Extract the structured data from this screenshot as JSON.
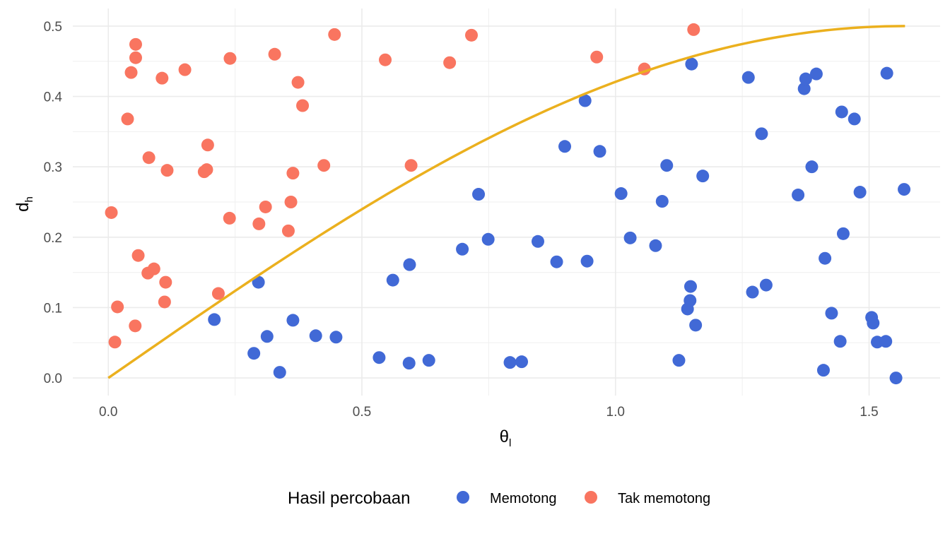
{
  "chart_data": {
    "type": "scatter",
    "title": "",
    "xlabel": "θ",
    "xlabel_sub": "l",
    "ylabel": "d",
    "ylabel_sub": "h",
    "xlim": [
      -0.07,
      1.64
    ],
    "ylim": [
      -0.025,
      0.525
    ],
    "x_ticks": [
      0.0,
      0.5,
      1.0,
      1.5
    ],
    "x_tick_labels": [
      "0.0",
      "0.5",
      "1.0",
      "1.5"
    ],
    "y_ticks": [
      0.0,
      0.1,
      0.2,
      0.3,
      0.4,
      0.5
    ],
    "y_tick_labels": [
      "0.0",
      "0.1",
      "0.2",
      "0.3",
      "0.4",
      "0.5"
    ],
    "grid": true,
    "legend": {
      "title": "Hasil percobaan",
      "position": "bottom",
      "entries": [
        {
          "label": "Memotong",
          "color": "#4169D6"
        },
        {
          "label": "Tak memotong",
          "color": "#F97560"
        }
      ]
    },
    "curve": {
      "name": "d = sin(θ)/2",
      "color": "#EBB01E",
      "x_range": [
        0,
        1.5708
      ]
    },
    "series": [
      {
        "name": "Memotong",
        "color": "#4169D6",
        "points": [
          [
            0.209,
            0.083
          ],
          [
            0.287,
            0.035
          ],
          [
            0.296,
            0.136
          ],
          [
            0.313,
            0.059
          ],
          [
            0.338,
            0.008
          ],
          [
            0.364,
            0.082
          ],
          [
            0.409,
            0.06
          ],
          [
            0.449,
            0.058
          ],
          [
            0.534,
            0.029
          ],
          [
            0.561,
            0.139
          ],
          [
            0.593,
            0.021
          ],
          [
            0.594,
            0.161
          ],
          [
            0.632,
            0.025
          ],
          [
            0.698,
            0.183
          ],
          [
            0.73,
            0.261
          ],
          [
            0.749,
            0.197
          ],
          [
            0.792,
            0.022
          ],
          [
            0.815,
            0.023
          ],
          [
            0.847,
            0.194
          ],
          [
            0.884,
            0.165
          ],
          [
            0.9,
            0.329
          ],
          [
            0.94,
            0.394
          ],
          [
            0.944,
            0.166
          ],
          [
            0.969,
            0.322
          ],
          [
            1.011,
            0.262
          ],
          [
            1.029,
            0.199
          ],
          [
            1.079,
            0.188
          ],
          [
            1.092,
            0.251
          ],
          [
            1.101,
            0.302
          ],
          [
            1.125,
            0.025
          ],
          [
            1.142,
            0.098
          ],
          [
            1.147,
            0.11
          ],
          [
            1.148,
            0.13
          ],
          [
            1.15,
            0.446
          ],
          [
            1.158,
            0.075
          ],
          [
            1.172,
            0.287
          ],
          [
            1.262,
            0.427
          ],
          [
            1.27,
            0.122
          ],
          [
            1.288,
            0.347
          ],
          [
            1.297,
            0.132
          ],
          [
            1.36,
            0.26
          ],
          [
            1.372,
            0.411
          ],
          [
            1.375,
            0.425
          ],
          [
            1.387,
            0.3
          ],
          [
            1.396,
            0.432
          ],
          [
            1.41,
            0.011
          ],
          [
            1.413,
            0.17
          ],
          [
            1.426,
            0.092
          ],
          [
            1.443,
            0.052
          ],
          [
            1.446,
            0.378
          ],
          [
            1.449,
            0.205
          ],
          [
            1.471,
            0.368
          ],
          [
            1.482,
            0.264
          ],
          [
            1.505,
            0.086
          ],
          [
            1.508,
            0.078
          ],
          [
            1.516,
            0.051
          ],
          [
            1.533,
            0.052
          ],
          [
            1.535,
            0.433
          ],
          [
            1.553,
            0.0
          ],
          [
            1.569,
            0.268
          ]
        ]
      },
      {
        "name": "Tak memotong",
        "color": "#F97560",
        "points": [
          [
            0.006,
            0.235
          ],
          [
            0.013,
            0.051
          ],
          [
            0.018,
            0.101
          ],
          [
            0.038,
            0.368
          ],
          [
            0.045,
            0.434
          ],
          [
            0.053,
            0.074
          ],
          [
            0.054,
            0.455
          ],
          [
            0.054,
            0.474
          ],
          [
            0.059,
            0.174
          ],
          [
            0.078,
            0.149
          ],
          [
            0.08,
            0.313
          ],
          [
            0.09,
            0.155
          ],
          [
            0.106,
            0.426
          ],
          [
            0.111,
            0.108
          ],
          [
            0.113,
            0.136
          ],
          [
            0.116,
            0.295
          ],
          [
            0.151,
            0.438
          ],
          [
            0.189,
            0.293
          ],
          [
            0.194,
            0.296
          ],
          [
            0.196,
            0.331
          ],
          [
            0.217,
            0.12
          ],
          [
            0.239,
            0.227
          ],
          [
            0.24,
            0.454
          ],
          [
            0.297,
            0.219
          ],
          [
            0.31,
            0.243
          ],
          [
            0.328,
            0.46
          ],
          [
            0.355,
            0.209
          ],
          [
            0.36,
            0.25
          ],
          [
            0.364,
            0.291
          ],
          [
            0.374,
            0.42
          ],
          [
            0.383,
            0.387
          ],
          [
            0.425,
            0.302
          ],
          [
            0.446,
            0.488
          ],
          [
            0.546,
            0.452
          ],
          [
            0.597,
            0.302
          ],
          [
            0.673,
            0.448
          ],
          [
            0.716,
            0.487
          ],
          [
            0.963,
            0.456
          ],
          [
            1.057,
            0.439
          ],
          [
            1.154,
            0.495
          ]
        ]
      }
    ]
  }
}
